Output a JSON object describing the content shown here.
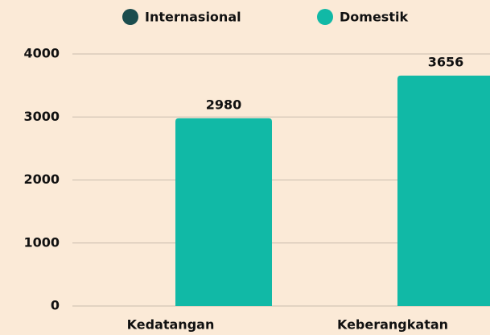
{
  "chart_data": {
    "type": "bar",
    "categories": [
      "Kedatangan",
      "Keberangkatan"
    ],
    "series": [
      {
        "name": "Internasional",
        "color": "#1b4d4e",
        "values": [
          0,
          0
        ],
        "show_labels": false
      },
      {
        "name": "Domestik",
        "color": "#11b9a6",
        "values": [
          2980,
          3656
        ],
        "show_labels": true
      }
    ],
    "ylim": [
      0,
      4000
    ],
    "yticks": [
      0,
      1000,
      2000,
      3000,
      4000
    ],
    "grid": true,
    "legend": "top"
  }
}
